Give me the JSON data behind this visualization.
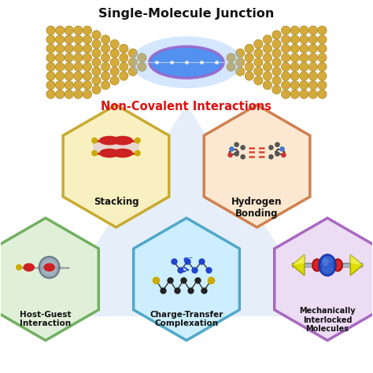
{
  "title_top": "Single-Molecule Junction",
  "title_mid": "Non-Covalent Interactions",
  "labels": [
    "Stacking",
    "Hydrogen\nBonding",
    "Host-Guest\nInteraction",
    "Charge-Transfer\nComplexation",
    "Mechanically\nInterlocked\nMolecules"
  ],
  "hex_colors": [
    "#f8f0c0",
    "#fce8d0",
    "#e0f0d8",
    "#cceeff",
    "#ecdcf4"
  ],
  "hex_edge_colors": [
    "#c8aa30",
    "#d08050",
    "#70b060",
    "#50a8c8",
    "#a868c0"
  ],
  "bg_color": "#ffffff",
  "cone_color": "#cfe0f5",
  "gold_color": "#d4aa3a",
  "gold_edge": "#9e7c1a",
  "blue_glow": "#4488ee",
  "purple_glow_edge": "#9966cc",
  "red_label": "#dd1111",
  "black_label": "#111111",
  "electrode_rows": [
    2,
    3,
    4,
    5,
    6,
    7,
    8,
    8,
    8,
    8,
    8
  ],
  "r_sphere": 0.12
}
